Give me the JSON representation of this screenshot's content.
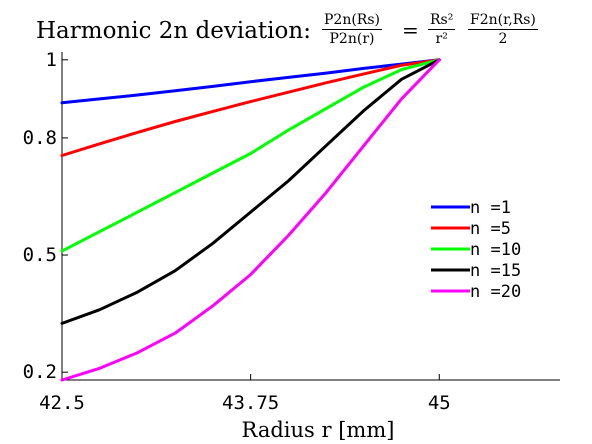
{
  "title_text": "Harmonic 2n deviation:",
  "title_formula": {
    "lhs_num": "P2n(Rs)",
    "lhs_den": "P2n(r)",
    "equals": "=",
    "rhs_a_num": "Rs²",
    "rhs_a_den": "r²",
    "rhs_b_num": "F2n(r,Rs)",
    "rhs_b_den": "2"
  },
  "chart_data": {
    "type": "line",
    "title": "Harmonic 2n deviation: P2n(Rs)/P2n(r) = Rs²/r² F2n(r,Rs)/2",
    "xlabel": "Radius r [mm]",
    "ylabel": "",
    "xlim": [
      42.5,
      45.8
    ],
    "ylim": [
      0.18,
      1.02
    ],
    "xticks": [
      42.5,
      43.75,
      45
    ],
    "xtick_labels": [
      "42.5",
      "43.75",
      "45"
    ],
    "yticks": [
      0.2,
      0.5,
      0.8,
      1
    ],
    "ytick_labels": [
      "0.2",
      "0.5",
      "0.8",
      "1"
    ],
    "grid": false,
    "legend_position": "right",
    "series": [
      {
        "name": "n =1",
        "color": "#0000ff",
        "x": [
          42.5,
          42.75,
          43.0,
          43.25,
          43.5,
          43.75,
          44.0,
          44.25,
          44.5,
          44.75,
          45.0
        ],
        "y": [
          0.89,
          0.9,
          0.91,
          0.921,
          0.932,
          0.944,
          0.955,
          0.966,
          0.978,
          0.989,
          1.0
        ]
      },
      {
        "name": "n =5",
        "color": "#ff0000",
        "x": [
          42.5,
          42.75,
          43.0,
          43.25,
          43.5,
          43.75,
          44.0,
          44.25,
          44.5,
          44.75,
          45.0
        ],
        "y": [
          0.755,
          0.785,
          0.814,
          0.842,
          0.868,
          0.893,
          0.917,
          0.941,
          0.964,
          0.986,
          1.0
        ]
      },
      {
        "name": "n =10",
        "color": "#00ff00",
        "x": [
          42.5,
          42.75,
          43.0,
          43.25,
          43.5,
          43.75,
          44.0,
          44.25,
          44.5,
          44.75,
          45.0
        ],
        "y": [
          0.51,
          0.56,
          0.61,
          0.66,
          0.71,
          0.76,
          0.82,
          0.875,
          0.93,
          0.975,
          1.0
        ]
      },
      {
        "name": "n =15",
        "color": "#000000",
        "x": [
          42.5,
          42.75,
          43.0,
          43.25,
          43.5,
          43.75,
          44.0,
          44.25,
          44.5,
          44.75,
          45.0
        ],
        "y": [
          0.325,
          0.36,
          0.405,
          0.46,
          0.53,
          0.61,
          0.69,
          0.78,
          0.87,
          0.95,
          1.0
        ]
      },
      {
        "name": "n =20",
        "color": "#ff00ff",
        "x": [
          42.5,
          42.75,
          43.0,
          43.25,
          43.5,
          43.75,
          44.0,
          44.25,
          44.5,
          44.75,
          45.0
        ],
        "y": [
          0.18,
          0.21,
          0.25,
          0.3,
          0.37,
          0.45,
          0.55,
          0.66,
          0.78,
          0.9,
          1.0
        ]
      }
    ]
  }
}
